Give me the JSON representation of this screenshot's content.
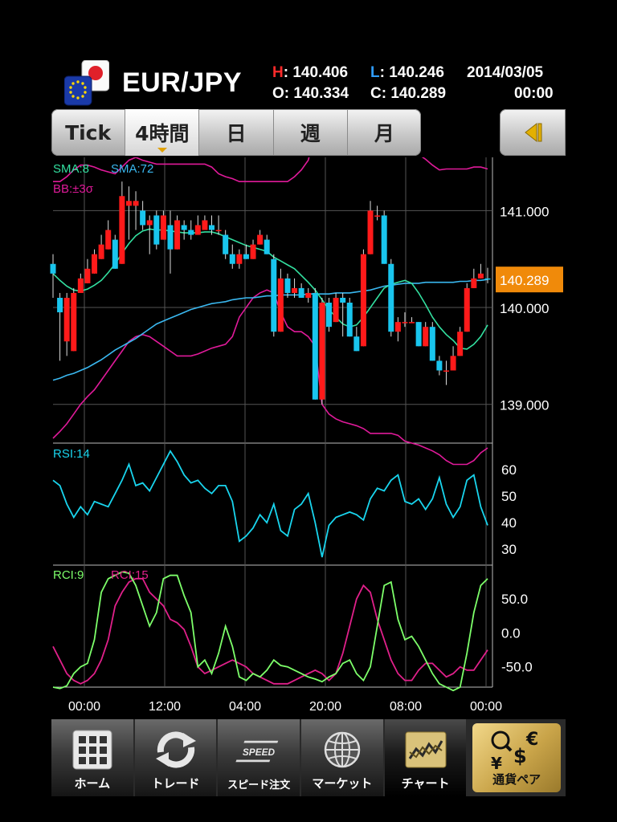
{
  "header": {
    "pair": "EUR/JPY",
    "high_key": "H",
    "high_val": ": 140.406",
    "low_key": "L",
    "low_val": ": 140.246",
    "open_key": "O",
    "open_val": ": 140.334",
    "close_key": "C",
    "close_val": ": 140.289",
    "date": "2014/03/05",
    "time": "00:00",
    "flag_icon": "eur-jpy-flag-icon"
  },
  "tabs": [
    {
      "label": "Tick",
      "active": false
    },
    {
      "label": "4時間",
      "active": true
    },
    {
      "label": "日",
      "active": false
    },
    {
      "label": "週",
      "active": false
    },
    {
      "label": "月",
      "active": false
    }
  ],
  "colors": {
    "candle_up": "#ff1a1a",
    "candle_down": "#19c5ee",
    "sma_fast": "#33e0a0",
    "sma_slow": "#3ab8f0",
    "bollinger": "#e01a9a",
    "rsi": "#19d5ee",
    "rci_fast": "#7dff6a",
    "rci_slow": "#e0208a",
    "price_tag": "#f08a0a"
  },
  "chart_data": {
    "type": "candlestick",
    "price_panel": {
      "legend": [
        "SMA:8",
        "SMA:72",
        "BB:±3σ"
      ],
      "ylim": [
        138.6,
        141.55
      ],
      "yticks": [
        "141.000",
        "140.000",
        "139.000"
      ],
      "current_price": "140.289",
      "candles": [
        [
          140.45,
          140.1,
          140.35,
          140.55
        ],
        [
          140.1,
          139.45,
          139.95,
          140.15
        ],
        [
          139.65,
          139.5,
          140.1,
          140.15
        ],
        [
          139.55,
          139.55,
          140.15,
          140.2
        ],
        [
          140.15,
          140.2,
          140.3,
          140.35
        ],
        [
          140.25,
          140.25,
          140.4,
          140.5
        ],
        [
          140.35,
          140.35,
          140.55,
          140.6
        ],
        [
          140.5,
          140.5,
          140.65,
          140.75
        ],
        [
          140.6,
          140.6,
          140.8,
          140.9
        ],
        [
          140.7,
          140.4,
          140.4,
          140.75
        ],
        [
          140.45,
          140.45,
          141.15,
          141.3
        ],
        [
          141.05,
          140.7,
          141.1,
          141.25
        ],
        [
          141.05,
          140.8,
          141.1,
          141.2
        ],
        [
          141.0,
          140.8,
          140.85,
          141.1
        ],
        [
          140.85,
          140.55,
          140.9,
          140.95
        ],
        [
          140.95,
          140.6,
          140.65,
          141.0
        ],
        [
          140.7,
          140.7,
          140.95,
          141.0
        ],
        [
          140.85,
          140.35,
          140.6,
          141.0
        ],
        [
          140.6,
          140.6,
          140.9,
          140.95
        ],
        [
          140.85,
          140.7,
          140.8,
          140.9
        ],
        [
          140.8,
          140.7,
          140.75,
          140.9
        ],
        [
          140.75,
          140.75,
          140.85,
          140.95
        ],
        [
          140.8,
          140.8,
          140.9,
          140.95
        ],
        [
          140.85,
          140.75,
          140.8,
          140.95
        ],
        [
          140.8,
          140.75,
          140.8,
          140.95
        ],
        [
          140.75,
          140.5,
          140.55,
          140.8
        ],
        [
          140.55,
          140.4,
          140.45,
          140.65
        ],
        [
          140.45,
          140.4,
          140.55,
          140.6
        ],
        [
          140.55,
          140.5,
          140.5,
          140.65
        ],
        [
          140.5,
          140.5,
          140.65,
          140.7
        ],
        [
          140.65,
          140.65,
          140.75,
          140.8
        ],
        [
          140.7,
          140.55,
          140.55,
          140.75
        ],
        [
          140.5,
          139.7,
          139.75,
          140.55
        ],
        [
          139.75,
          139.75,
          140.3,
          140.4
        ],
        [
          140.3,
          140.1,
          140.15,
          140.35
        ],
        [
          140.15,
          140.1,
          140.2,
          140.3
        ],
        [
          140.2,
          140.1,
          140.1,
          140.25
        ],
        [
          140.1,
          140.05,
          140.15,
          140.2
        ],
        [
          140.15,
          139.05,
          139.05,
          140.2
        ],
        [
          139.05,
          139.0,
          140.05,
          140.1
        ],
        [
          140.05,
          139.75,
          139.8,
          140.1
        ],
        [
          139.85,
          139.85,
          140.1,
          140.15
        ],
        [
          140.1,
          139.7,
          140.05,
          140.15
        ],
        [
          140.05,
          139.7,
          139.7,
          140.1
        ],
        [
          139.7,
          139.55,
          139.55,
          139.8
        ],
        [
          139.6,
          139.6,
          140.55,
          140.6
        ],
        [
          140.55,
          140.55,
          141.0,
          141.1
        ],
        [
          140.95,
          140.9,
          140.95,
          141.05
        ],
        [
          140.95,
          140.45,
          140.45,
          141.0
        ],
        [
          140.45,
          139.7,
          139.75,
          140.5
        ],
        [
          139.75,
          139.65,
          139.85,
          139.9
        ],
        [
          139.85,
          139.8,
          139.85,
          139.95
        ],
        [
          139.85,
          139.85,
          139.85,
          139.9
        ],
        [
          139.85,
          139.6,
          139.6,
          139.85
        ],
        [
          139.6,
          139.6,
          139.8,
          139.85
        ],
        [
          139.8,
          139.45,
          139.45,
          139.85
        ],
        [
          139.45,
          139.3,
          139.35,
          139.5
        ],
        [
          139.35,
          139.2,
          139.35,
          139.45
        ],
        [
          139.35,
          139.35,
          139.5,
          139.6
        ],
        [
          139.5,
          139.5,
          139.75,
          139.8
        ],
        [
          139.75,
          139.75,
          140.2,
          140.25
        ],
        [
          140.2,
          140.2,
          140.3,
          140.4
        ],
        [
          140.3,
          140.3,
          140.35,
          140.45
        ],
        [
          140.3,
          140.25,
          140.29,
          140.41
        ]
      ],
      "sma8": [
        140.35,
        140.28,
        140.22,
        140.18,
        140.17,
        140.19,
        140.23,
        140.28,
        140.36,
        140.45,
        140.56,
        140.66,
        140.74,
        140.79,
        140.81,
        140.8,
        140.8,
        140.79,
        140.78,
        140.77,
        140.77,
        140.77,
        140.78,
        140.78,
        140.76,
        140.73,
        140.7,
        140.67,
        140.64,
        140.62,
        140.6,
        140.58,
        140.52,
        140.48,
        140.44,
        140.4,
        140.33,
        140.26,
        140.18,
        140.08,
        139.98,
        139.9,
        139.83,
        139.8,
        139.82,
        139.9,
        140.0,
        140.1,
        140.2,
        140.24,
        140.26,
        140.28,
        140.25,
        140.15,
        140.03,
        139.9,
        139.8,
        139.72,
        139.66,
        139.58,
        139.57,
        139.62,
        139.7,
        139.82
      ],
      "sma72": [
        139.25,
        139.27,
        139.3,
        139.32,
        139.35,
        139.38,
        139.42,
        139.46,
        139.51,
        139.56,
        139.6,
        139.64,
        139.68,
        139.73,
        139.78,
        139.83,
        139.86,
        139.89,
        139.92,
        139.95,
        139.98,
        140.0,
        140.02,
        140.04,
        140.05,
        140.06,
        140.08,
        140.09,
        140.1,
        140.1,
        140.11,
        140.12,
        140.12,
        140.13,
        140.13,
        140.13,
        140.13,
        140.14,
        140.14,
        140.14,
        140.14,
        140.15,
        140.15,
        140.15,
        140.16,
        140.17,
        140.18,
        140.2,
        140.22,
        140.23,
        140.24,
        140.25,
        140.25,
        140.25,
        140.26,
        140.26,
        140.26,
        140.26,
        140.26,
        140.27,
        140.27,
        140.28,
        140.28,
        140.29
      ],
      "bb_upper": [
        141.3,
        141.3,
        141.35,
        141.42,
        141.47,
        141.47,
        141.45,
        141.42,
        141.4,
        141.38,
        141.45,
        141.52,
        141.55,
        141.52,
        141.5,
        141.48,
        141.48,
        141.48,
        141.48,
        141.48,
        141.48,
        141.48,
        141.48,
        141.45,
        141.38,
        141.35,
        141.33,
        141.3,
        141.3,
        141.3,
        141.3,
        141.3,
        141.3,
        141.3,
        141.3,
        141.35,
        141.42,
        141.52,
        141.8,
        141.82,
        141.78,
        141.73,
        141.7,
        141.67,
        141.65,
        141.62,
        141.6,
        141.58,
        141.58,
        141.57,
        141.6,
        141.6,
        141.6,
        141.58,
        141.53,
        141.47,
        141.42,
        141.43,
        141.43,
        141.43,
        141.43,
        141.45,
        141.45,
        141.43
      ],
      "bb_lower": [
        138.65,
        138.72,
        138.8,
        138.9,
        139.0,
        139.08,
        139.15,
        139.25,
        139.35,
        139.45,
        139.55,
        139.65,
        139.7,
        139.72,
        139.7,
        139.65,
        139.6,
        139.55,
        139.5,
        139.5,
        139.5,
        139.52,
        139.55,
        139.58,
        139.6,
        139.62,
        139.7,
        139.9,
        140.0,
        140.1,
        140.15,
        140.18,
        140.15,
        139.95,
        139.8,
        139.75,
        139.75,
        139.7,
        139.6,
        139.0,
        138.9,
        138.85,
        138.82,
        138.8,
        138.78,
        138.75,
        138.7,
        138.7,
        138.7,
        138.7,
        138.68,
        138.62,
        138.6,
        138.58,
        138.55,
        138.52,
        138.48,
        138.42,
        138.38,
        138.38,
        138.38,
        138.42,
        138.5,
        138.55
      ]
    },
    "rsi_panel": {
      "legend": "RSI:14",
      "ylim": [
        24,
        70
      ],
      "yticks": [
        "60",
        "50",
        "40",
        "30"
      ],
      "values": [
        56,
        54,
        47,
        42,
        46,
        43,
        48,
        47,
        46,
        51,
        56,
        62,
        54,
        55,
        52,
        57,
        62,
        67,
        63,
        58,
        55,
        56,
        53,
        51,
        54,
        54,
        48,
        33,
        35,
        38,
        43,
        40,
        47,
        37,
        35,
        45,
        47,
        51,
        40,
        27,
        39,
        42,
        43,
        44,
        43,
        41,
        49,
        53,
        52,
        56,
        58,
        48,
        47,
        49,
        45,
        49,
        57,
        47,
        42,
        46,
        56,
        58,
        46,
        39
      ],
      "series_name": "RSI"
    },
    "rci_panel": {
      "legend": [
        "RCI:9",
        "RCI:15"
      ],
      "ylim": [
        -80,
        100
      ],
      "yticks": [
        "50.0",
        "0.0",
        "-50.0"
      ],
      "rci9": [
        -80,
        -82,
        -78,
        -60,
        -50,
        -45,
        -10,
        60,
        80,
        85,
        90,
        88,
        70,
        40,
        10,
        30,
        80,
        85,
        85,
        55,
        30,
        -50,
        -40,
        -60,
        -30,
        10,
        -20,
        -65,
        -70,
        -60,
        -65,
        -55,
        -40,
        -48,
        -50,
        -55,
        -60,
        -65,
        -68,
        -72,
        -65,
        -60,
        -45,
        -40,
        -60,
        -70,
        -50,
        10,
        70,
        75,
        20,
        -10,
        -5,
        -20,
        -40,
        -60,
        -75,
        -80,
        -85,
        -80,
        -30,
        30,
        70,
        80
      ],
      "rci15": [
        -20,
        -40,
        -60,
        -70,
        -75,
        -70,
        -60,
        -40,
        -10,
        40,
        60,
        75,
        80,
        80,
        60,
        50,
        40,
        20,
        15,
        5,
        -20,
        -50,
        -60,
        -55,
        -50,
        -45,
        -40,
        -45,
        -50,
        -60,
        -65,
        -70,
        -75,
        -75,
        -75,
        -70,
        -65,
        -60,
        -55,
        -60,
        -70,
        -60,
        -30,
        10,
        50,
        70,
        60,
        20,
        -10,
        -40,
        -60,
        -70,
        -70,
        -55,
        -45,
        -45,
        -55,
        -65,
        -60,
        -50,
        -55,
        -55,
        -40,
        -25
      ]
    },
    "x_ticks": [
      "00:00",
      "12:00",
      "04:00",
      "20:00",
      "08:00",
      "00:00"
    ]
  },
  "bottom_nav": [
    {
      "label": "ホーム",
      "icon": "grid-home-icon",
      "active": false
    },
    {
      "label": "トレード",
      "icon": "refresh-arrows-icon",
      "active": false
    },
    {
      "label": "スピード注文",
      "icon": "speed-icon",
      "active": false,
      "icon_text": "SPEED"
    },
    {
      "label": "マーケット",
      "icon": "globe-icon",
      "active": false
    },
    {
      "label": "チャート",
      "icon": "chart-icon",
      "active": true
    },
    {
      "label": "通貨ペア",
      "icon": "currency-icon",
      "active": false,
      "symbols": [
        "€",
        "$",
        "¥"
      ]
    }
  ]
}
